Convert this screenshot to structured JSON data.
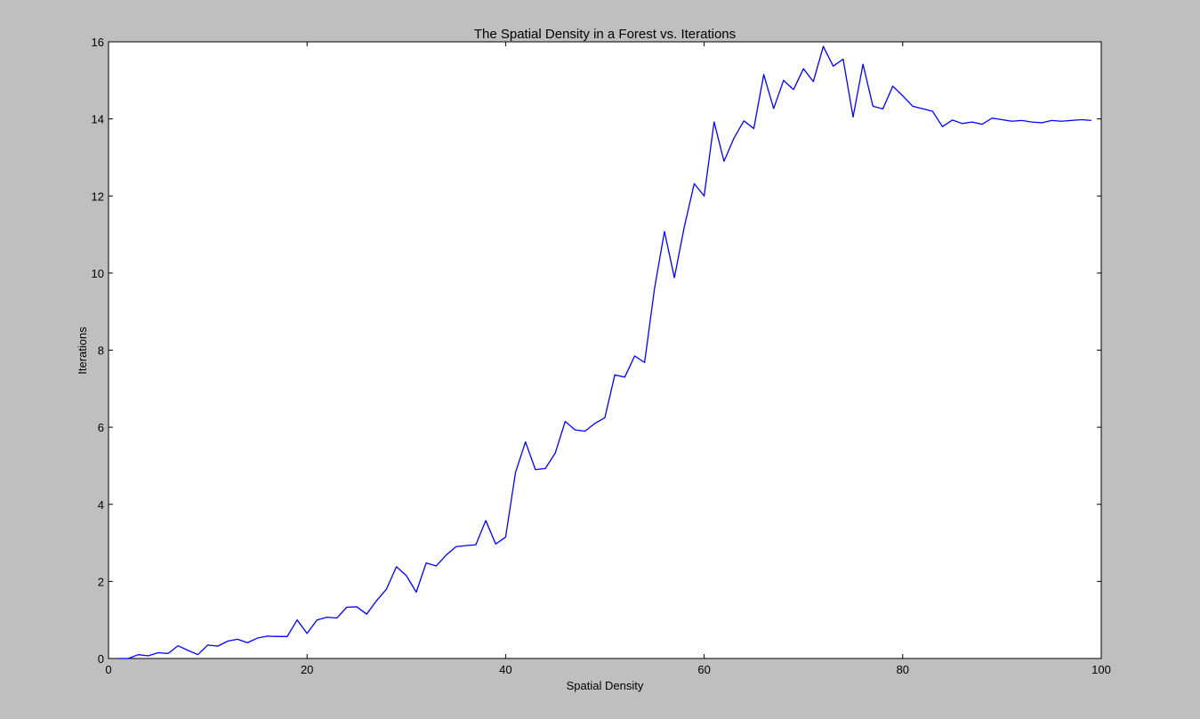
{
  "chart_data": {
    "type": "line",
    "title": "The Spatial Density in a Forest vs. Iterations",
    "xlabel": "Spatial Density",
    "ylabel": "Iterations",
    "xlim": [
      0,
      100
    ],
    "ylim": [
      0,
      16
    ],
    "xticks": [
      0,
      20,
      40,
      60,
      80,
      100
    ],
    "yticks": [
      0,
      2,
      4,
      6,
      8,
      10,
      12,
      14,
      16
    ],
    "grid": false,
    "line_color": "#0000ff",
    "series": [
      {
        "x": [
          1,
          2,
          3,
          4,
          5,
          6,
          7,
          8,
          9,
          10,
          11,
          12,
          13,
          14,
          15,
          16,
          17,
          18,
          19,
          20,
          21,
          22,
          23,
          24,
          25,
          26,
          27,
          28,
          29,
          30,
          31,
          32,
          33,
          34,
          35,
          36,
          37,
          38,
          39,
          40,
          41,
          42,
          43,
          44,
          45,
          46,
          47,
          48,
          49,
          50,
          51,
          52,
          53,
          54,
          55,
          56,
          57,
          58,
          59,
          60,
          61,
          62,
          63,
          64,
          65,
          66,
          67,
          68,
          69,
          70,
          71,
          72,
          73,
          74,
          75,
          76,
          77,
          78,
          79,
          80,
          81,
          83,
          84,
          85,
          86,
          87,
          88,
          89,
          90,
          91,
          92,
          93,
          94,
          95,
          96,
          97,
          98,
          99
        ],
        "y": [
          0,
          0,
          0.1,
          0.07,
          0.15,
          0.13,
          0.33,
          0.21,
          0.1,
          0.35,
          0.32,
          0.45,
          0.5,
          0.41,
          0.53,
          0.58,
          0.57,
          0.57,
          1.0,
          0.65,
          1.0,
          1.07,
          1.05,
          1.33,
          1.34,
          1.15,
          1.5,
          1.8,
          2.38,
          2.15,
          1.72,
          2.48,
          2.4,
          2.68,
          2.9,
          2.93,
          2.95,
          3.58,
          2.97,
          3.15,
          4.83,
          5.62,
          4.9,
          4.93,
          5.33,
          6.15,
          5.93,
          5.9,
          6.1,
          6.25,
          7.36,
          7.3,
          7.85,
          7.68,
          9.6,
          11.08,
          9.88,
          11.2,
          12.32,
          12.0,
          13.92,
          12.9,
          13.5,
          13.95,
          13.75,
          15.15,
          14.27,
          15.0,
          14.76,
          15.3,
          14.97,
          15.88,
          15.37,
          15.55,
          14.05,
          15.42,
          14.33,
          14.26,
          14.85,
          14.6,
          14.33,
          14.2,
          13.8,
          13.97,
          13.88,
          13.92,
          13.86,
          14.02,
          13.98,
          13.94,
          13.96,
          13.92,
          13.9,
          13.96,
          13.94,
          13.96,
          13.98,
          13.96
        ]
      }
    ]
  }
}
